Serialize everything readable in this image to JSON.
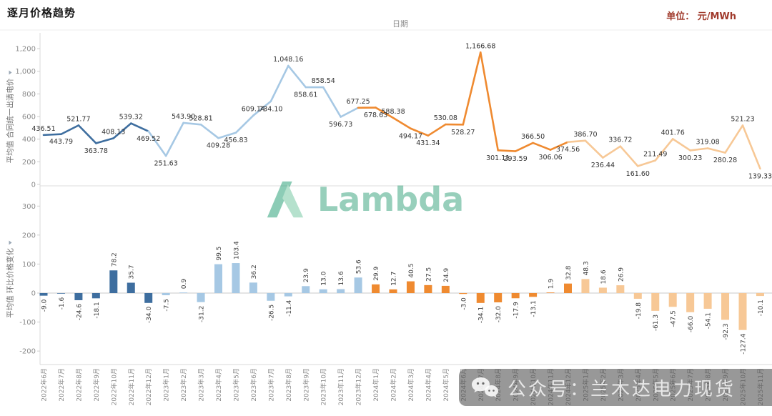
{
  "header": {
    "title": "逐月价格趋势",
    "unit": "单位： 元/MWh",
    "x_field": "日期"
  },
  "axes": {
    "top_y_title": "平均值 合同统一出清电价",
    "bottom_y_title": "平均值 环比价格变化",
    "top_ticks": [
      [
        0,
        "0"
      ],
      [
        200,
        "200"
      ],
      [
        400,
        "400"
      ],
      [
        600,
        "600"
      ],
      [
        800,
        "800"
      ],
      [
        1000,
        "1,000"
      ],
      [
        1200,
        "1,200"
      ]
    ],
    "bottom_ticks": [
      [
        -200,
        "-200"
      ],
      [
        -100,
        "-100"
      ],
      [
        0,
        "0"
      ],
      [
        100,
        "100"
      ],
      [
        200,
        "200"
      ],
      [
        300,
        "300"
      ]
    ]
  },
  "palette": {
    "year_colors": {
      "2022": "#3e6e9f",
      "2023": "#a6c8e4",
      "2024": "#ef8a30",
      "2025": "#f7c896"
    },
    "value_label_color": "#333333",
    "bar_label_color": "#3d3d3d",
    "tick_label_color": "#8c8c8c",
    "date_label_color": "#8a8a8a"
  },
  "watermarks": {
    "logo_text": "Lambda",
    "logo_color": "#43a884",
    "wechat_text": "公众号：兰木达电力现货"
  },
  "chart_data": [
    {
      "type": "line",
      "title": "逐月价格趋势",
      "xlabel": "日期",
      "ylabel": "平均值 合同统一出清电价",
      "ylim": [
        0,
        1200
      ],
      "yticks": [
        0,
        200,
        400,
        600,
        800,
        1000,
        1200
      ],
      "legend": "none",
      "grid": "off",
      "categories": [
        "2022年6月",
        "2022年7月",
        "2022年8月",
        "2022年9月",
        "2022年10月",
        "2022年11月",
        "2022年12月",
        "2023年1月",
        "2023年2月",
        "2023年3月",
        "2023年4月",
        "2023年5月",
        "2023年6月",
        "2023年7月",
        "2023年8月",
        "2023年9月",
        "2023年10月",
        "2023年11月",
        "2023年12月",
        "2024年1月",
        "2024年2月",
        "2024年3月",
        "2024年4月",
        "2024年5月",
        "2024年6月",
        "2024年7月",
        "2024年8月",
        "2024年9月",
        "2024年10月",
        "2024年11月",
        "2024年12月",
        "2025年1月",
        "2025年2月",
        "2025年3月",
        "2025年4月",
        "2025年5月",
        "2025年6月",
        "2025年7月",
        "2025年8月",
        "2025年9月",
        "2025年10月",
        "2025年11月"
      ],
      "values": [
        436.51,
        443.79,
        521.77,
        363.78,
        408.13,
        539.32,
        469.52,
        251.63,
        543.9,
        528.81,
        409.28,
        456.83,
        609.14,
        734.1,
        1048.16,
        858.61,
        858.54,
        596.73,
        677.25,
        678.63,
        588.38,
        494.17,
        431.34,
        530.08,
        528.27,
        1166.68,
        301.11,
        293.59,
        366.5,
        306.06,
        374.56,
        386.7,
        236.44,
        336.72,
        161.6,
        211.49,
        401.76,
        300.23,
        319.08,
        280.28,
        521.23,
        139.33
      ],
      "point_labels": [
        "436.51",
        "443.79",
        "521.77",
        "363.78",
        "408.13",
        "539.32",
        "469.52",
        "251.63",
        "543.90",
        "528.81",
        "409.28",
        "456.83",
        "609.14",
        "734.10",
        "1,048.16",
        "858.61",
        "858.54",
        "596.73",
        "677.25",
        "678.63",
        "588.38",
        "494.17",
        "431.34",
        "530.08",
        "528.27",
        "1,166.68",
        "301.11",
        "293.59",
        "366.50",
        "306.06",
        "374.56",
        "386.70",
        "236.44",
        "336.72",
        "161.60",
        "211.49",
        "401.76",
        "300.23",
        "319.08",
        "280.28",
        "521.23",
        "139.33"
      ],
      "label_side": [
        "above",
        "below",
        "above",
        "below",
        "above",
        "above",
        "below",
        "below",
        "above",
        "above",
        "below",
        "below",
        "above",
        "below",
        "above",
        "below",
        "above",
        "below",
        "above",
        "below",
        "above",
        "below",
        "below",
        "above",
        "below",
        "above",
        "below",
        "below",
        "above",
        "below",
        "below",
        "above",
        "below",
        "above",
        "below",
        "above",
        "above",
        "below",
        "above",
        "below",
        "above",
        "below"
      ]
    },
    {
      "type": "bar",
      "title": "逐月价格趋势",
      "xlabel": "日期",
      "ylabel": "平均值 环比价格变化",
      "ylim": [
        -200,
        300
      ],
      "yticks": [
        -200,
        -100,
        0,
        100,
        200,
        300
      ],
      "legend": "none",
      "grid": "off",
      "categories": [
        "2022年6月",
        "2022年7月",
        "2022年8月",
        "2022年9月",
        "2022年10月",
        "2022年11月",
        "2022年12月",
        "2023年1月",
        "2023年2月",
        "2023年3月",
        "2023年4月",
        "2023年5月",
        "2023年6月",
        "2023年7月",
        "2023年8月",
        "2023年9月",
        "2023年10月",
        "2023年11月",
        "2023年12月",
        "2024年1月",
        "2024年2月",
        "2024年3月",
        "2024年4月",
        "2024年5月",
        "2024年6月",
        "2024年7月",
        "2024年8月",
        "2024年9月",
        "2024年10月",
        "2024年11月",
        "2024年12月",
        "2025年1月",
        "2025年2月",
        "2025年3月",
        "2025年4月",
        "2025年5月",
        "2025年6月",
        "2025年7月",
        "2025年8月",
        "2025年9月",
        "2025年10月",
        "2025年11月"
      ],
      "values": [
        -9.0,
        -1.6,
        -24.6,
        -18.1,
        78.2,
        35.7,
        -34.0,
        -7.5,
        0.9,
        -31.2,
        99.5,
        103.4,
        36.2,
        -26.5,
        -11.4,
        23.9,
        13.0,
        13.6,
        53.6,
        29.9,
        12.7,
        40.5,
        27.5,
        24.9,
        -3.0,
        -34.1,
        -32.0,
        -17.9,
        -13.1,
        1.9,
        32.8,
        48.3,
        18.6,
        26.9,
        -19.8,
        -61.3,
        -47.5,
        -66.0,
        -54.1,
        -92.3,
        -127.4,
        -10.1
      ],
      "labels": [
        "-9.0",
        "-1.6",
        "-24.6",
        "-18.1",
        "78.2",
        "35.7",
        "-34.0",
        "-7.5",
        "0.9",
        "-31.2",
        "99.5",
        "103.4",
        "36.2",
        "-26.5",
        "-11.4",
        "23.9",
        "13.0",
        "13.6",
        "53.6",
        "29.9",
        "12.7",
        "40.5",
        "27.5",
        "24.9",
        "-3.0",
        "-34.1",
        "-32.0",
        "-17.9",
        "-13.1",
        "1.9",
        "32.8",
        "48.3",
        "18.6",
        "26.9",
        "-19.8",
        "-61.3",
        "-47.5",
        "-66.0",
        "-54.1",
        "-92.3",
        "-127.4",
        "-10.1"
      ]
    }
  ]
}
